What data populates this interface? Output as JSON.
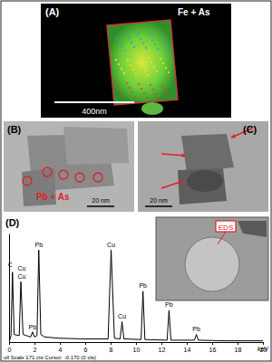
{
  "panels": {
    "a": {
      "label": "(A)",
      "title": "Fe + As",
      "scale_bar": "400nm"
    },
    "b": {
      "label": "(B)",
      "annotation": "Pb + As",
      "scale_bar": "20 nm"
    },
    "c": {
      "label": "(C)",
      "scale_bar": "20 nm"
    },
    "d": {
      "label": "(D)",
      "inset_label": "EDS",
      "footer": "ull Scale 171 cts Cursor: -0.170 (0 cts)"
    }
  },
  "chart_data": {
    "type": "line",
    "x_label": "keV",
    "color": "#000000",
    "x": [
      0,
      0.15,
      0.27,
      0.4,
      0.8,
      0.93,
      1.1,
      1.7,
      1.85,
      2.0,
      2.2,
      2.34,
      2.5,
      2.8,
      4,
      6,
      7.8,
      8.04,
      8.3,
      8.75,
      8.9,
      9.05,
      10.4,
      10.55,
      10.7,
      12.45,
      12.6,
      12.75,
      14.6,
      14.76,
      14.9,
      17,
      20
    ],
    "values": [
      0,
      10,
      110,
      12,
      10,
      95,
      12,
      8,
      16,
      8,
      10,
      145,
      12,
      8,
      6,
      5,
      5,
      145,
      6,
      5,
      32,
      5,
      4,
      80,
      4,
      3,
      50,
      3,
      3,
      12,
      3,
      2,
      2
    ],
    "xlim": [
      0,
      20
    ],
    "xticks": [
      0,
      2,
      4,
      6,
      8,
      10,
      12,
      14,
      16,
      18,
      20
    ],
    "ylim": [
      0,
      171
    ],
    "tick_labels": "x",
    "annotations": [
      {
        "text": "C",
        "x": 0.1,
        "y": 118
      },
      {
        "text": "Cu",
        "x": 1.0,
        "y": 100
      },
      {
        "text": "Cu",
        "x": 1.0,
        "y": 113
      },
      {
        "text": "Pb",
        "x": 1.85,
        "y": 20
      },
      {
        "text": "Pb",
        "x": 2.34,
        "y": 150
      },
      {
        "text": "Cu",
        "x": 8.04,
        "y": 150
      },
      {
        "text": "Cu",
        "x": 8.9,
        "y": 37
      },
      {
        "text": "Pb",
        "x": 10.55,
        "y": 85
      },
      {
        "text": "Pb",
        "x": 12.6,
        "y": 55
      },
      {
        "text": "Pb",
        "x": 14.76,
        "y": 17
      }
    ]
  }
}
